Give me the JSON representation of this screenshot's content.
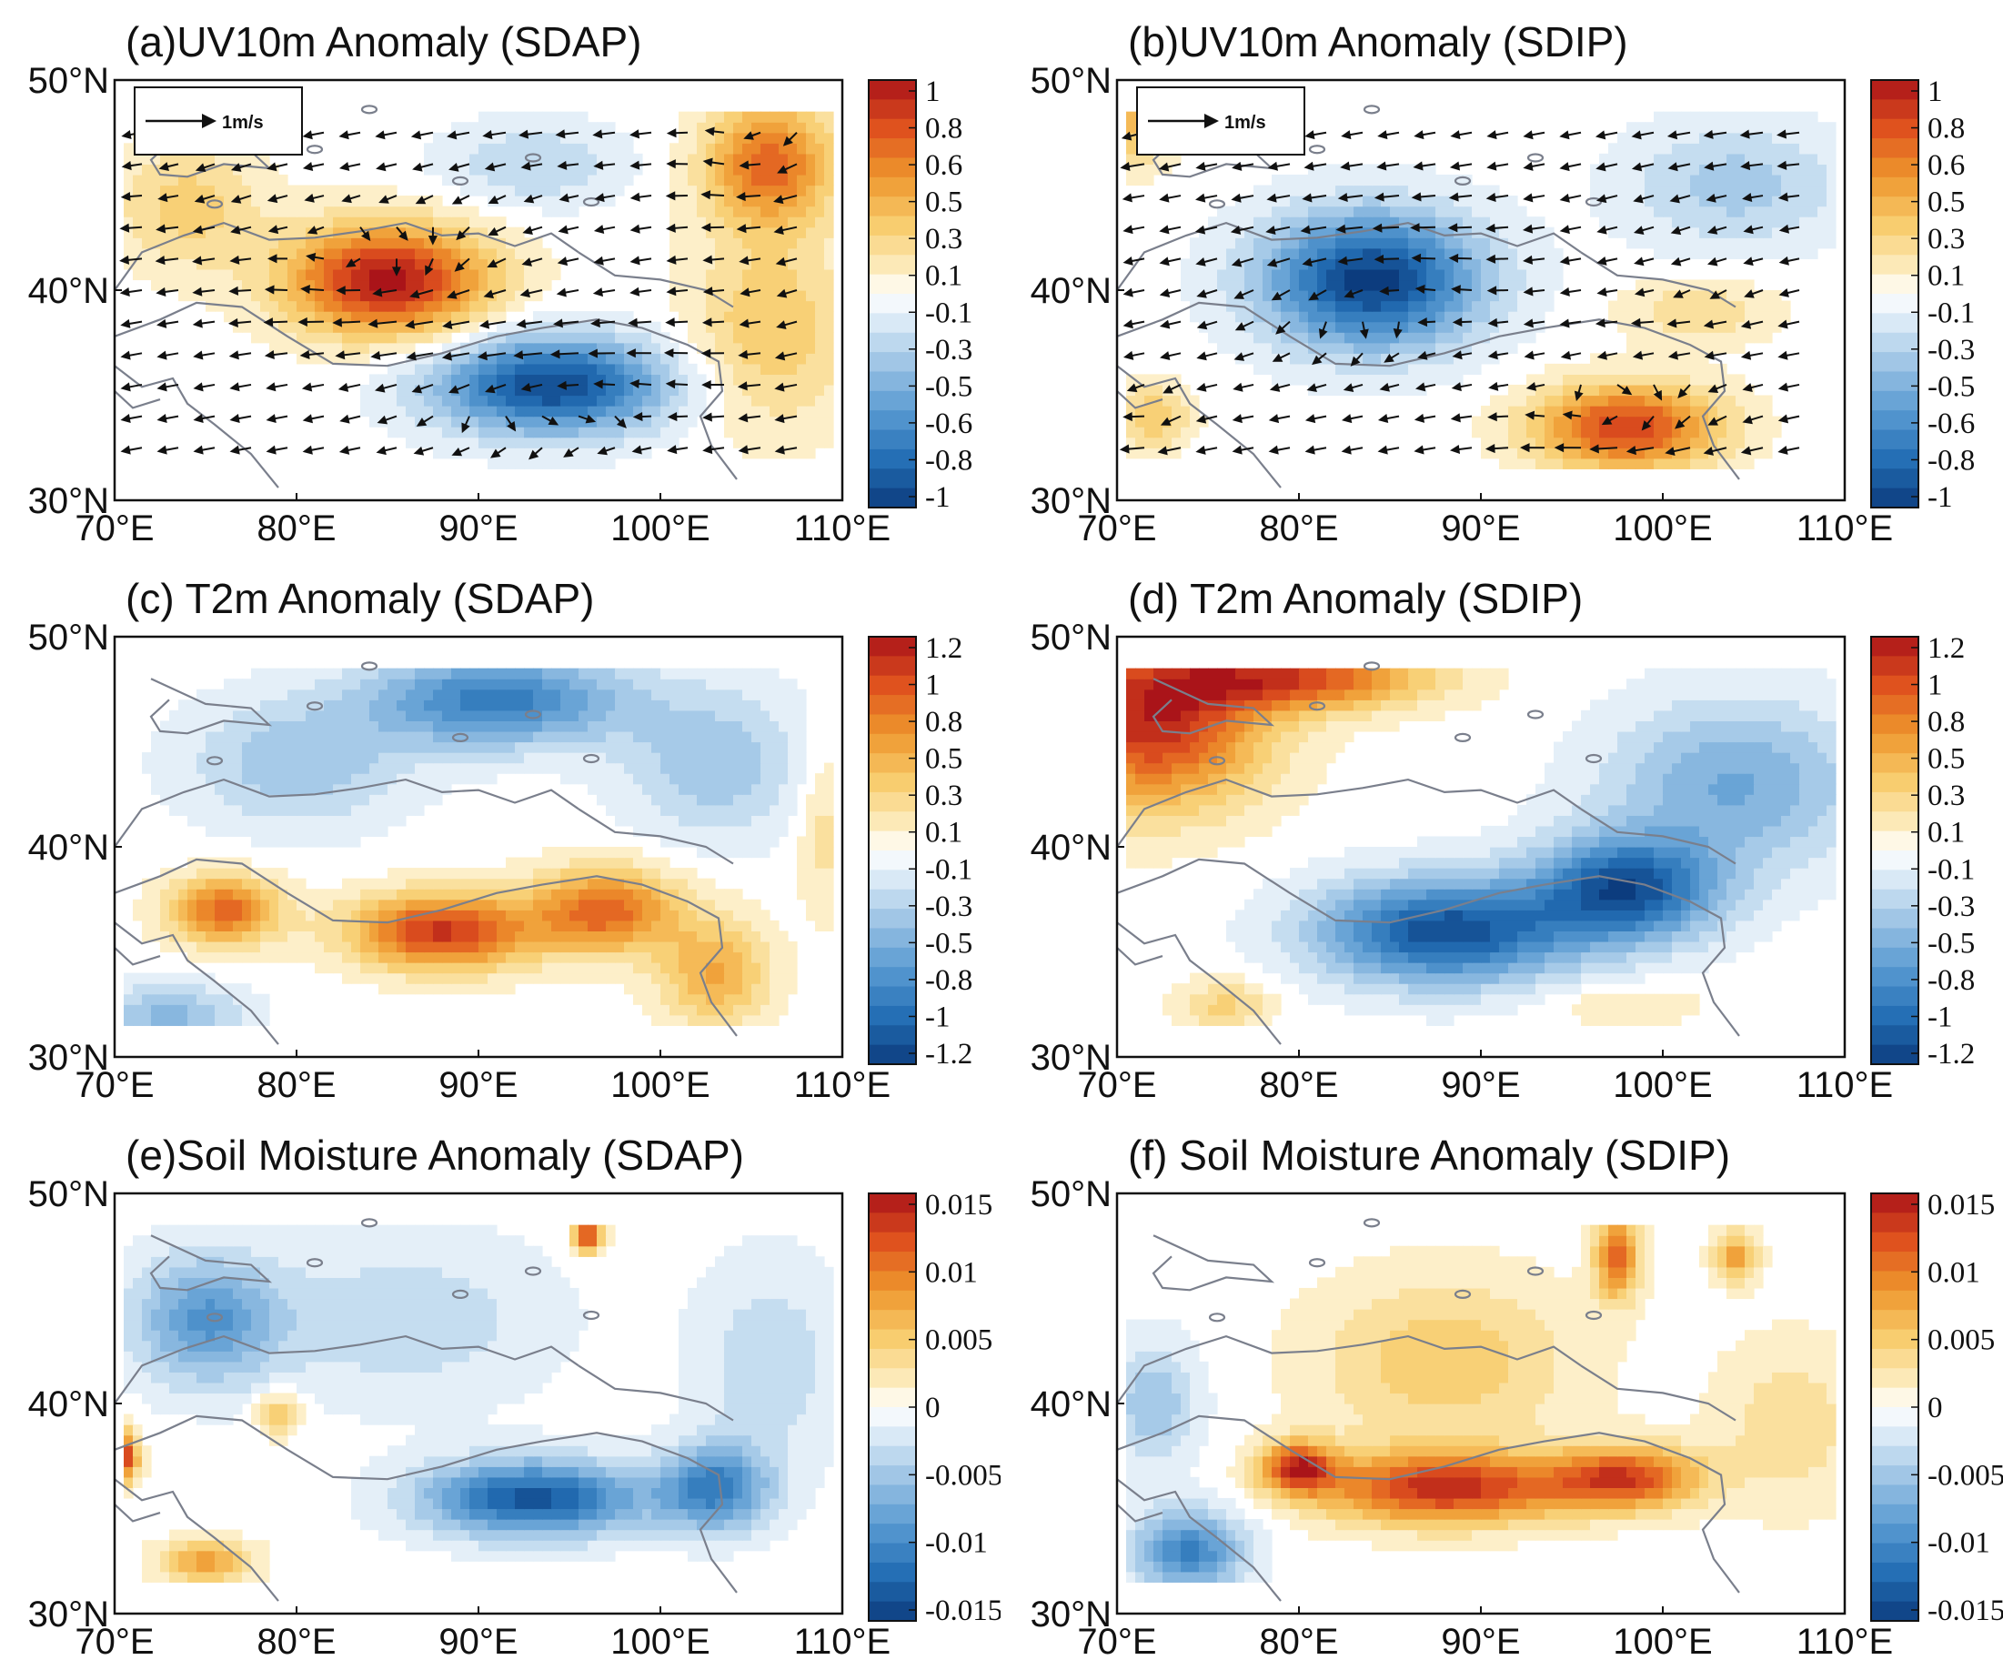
{
  "chart_data": [
    {
      "id": "a",
      "type": "heatmap",
      "title": "(a)UV10m Anomaly (SDAP)",
      "overlay": "wind-vectors",
      "reference_vector": "1m/s",
      "xlabel": "",
      "ylabel": "",
      "x_ticks": [
        "70°E",
        "80°E",
        "90°E",
        "100°E",
        "110°E"
      ],
      "y_ticks": [
        "50°N",
        "40°N",
        "30°N"
      ],
      "xlim": [
        70,
        110
      ],
      "ylim": [
        30,
        50
      ],
      "colorbar": {
        "min": -1,
        "max": 1,
        "labels": [
          "1",
          "0.8",
          "0.6",
          "0.5",
          "0.3",
          "0.1",
          "-0.1",
          "-0.3",
          "-0.5",
          "-0.6",
          "-0.8",
          "-1"
        ]
      },
      "features": [
        {
          "lon": 85,
          "lat": 40.5,
          "value": 1.0,
          "sx": 5.5,
          "sy": 2.6
        },
        {
          "lon": 94,
          "lat": 35.5,
          "value": -0.95,
          "sx": 6.5,
          "sy": 2.3
        },
        {
          "lon": 106,
          "lat": 46,
          "value": 0.7,
          "sx": 3.5,
          "sy": 3.0
        },
        {
          "lon": 106,
          "lat": 38,
          "value": 0.35,
          "sx": 4.5,
          "sy": 4.5
        },
        {
          "lon": 74,
          "lat": 44,
          "value": 0.3,
          "sx": 4.0,
          "sy": 3.0
        },
        {
          "lon": 93,
          "lat": 46,
          "value": -0.25,
          "sx": 5.0,
          "sy": 2.0
        }
      ]
    },
    {
      "id": "b",
      "type": "heatmap",
      "title": "(b)UV10m Anomaly (SDIP)",
      "overlay": "wind-vectors",
      "reference_vector": "1m/s",
      "xlabel": "",
      "ylabel": "",
      "x_ticks": [
        "70°E",
        "80°E",
        "90°E",
        "100°E",
        "110°E"
      ],
      "y_ticks": [
        "50°N",
        "40°N",
        "30°N"
      ],
      "xlim": [
        70,
        110
      ],
      "ylim": [
        30,
        50
      ],
      "colorbar": {
        "min": -1,
        "max": 1,
        "labels": [
          "1",
          "0.8",
          "0.6",
          "0.5",
          "0.3",
          "0.1",
          "-0.1",
          "-0.3",
          "-0.5",
          "-0.6",
          "-0.8",
          "-1"
        ]
      },
      "features": [
        {
          "lon": 84,
          "lat": 40.5,
          "value": -1.0,
          "sx": 6.0,
          "sy": 3.2
        },
        {
          "lon": 98,
          "lat": 33.5,
          "value": 0.85,
          "sx": 5.0,
          "sy": 2.0
        },
        {
          "lon": 104,
          "lat": 45,
          "value": -0.3,
          "sx": 6.0,
          "sy": 3.0
        },
        {
          "lon": 72,
          "lat": 34,
          "value": 0.35,
          "sx": 2.0,
          "sy": 1.5
        },
        {
          "lon": 71,
          "lat": 48,
          "value": 0.4,
          "sx": 2.0,
          "sy": 2.0
        },
        {
          "lon": 102,
          "lat": 39,
          "value": 0.25,
          "sx": 4.0,
          "sy": 1.5
        }
      ]
    },
    {
      "id": "c",
      "type": "heatmap",
      "title": "(c) T2m Anomaly (SDAP)",
      "xlabel": "",
      "ylabel": "",
      "x_ticks": [
        "70°E",
        "80°E",
        "90°E",
        "100°E",
        "110°E"
      ],
      "y_ticks": [
        "50°N",
        "40°N",
        "30°N"
      ],
      "xlim": [
        70,
        110
      ],
      "ylim": [
        30,
        50
      ],
      "colorbar": {
        "min": -1.2,
        "max": 1.2,
        "labels": [
          "1.2",
          "1",
          "0.8",
          "0.5",
          "0.3",
          "0.1",
          "-0.1",
          "-0.3",
          "-0.5",
          "-0.8",
          "-1",
          "-1.2"
        ]
      },
      "features": [
        {
          "lon": 88,
          "lat": 36,
          "value": 1.05,
          "sx": 5.0,
          "sy": 1.8
        },
        {
          "lon": 97,
          "lat": 37,
          "value": 0.85,
          "sx": 4.0,
          "sy": 2.0
        },
        {
          "lon": 76,
          "lat": 37,
          "value": 0.85,
          "sx": 3.0,
          "sy": 1.6
        },
        {
          "lon": 103,
          "lat": 34,
          "value": 0.55,
          "sx": 3.0,
          "sy": 2.5
        },
        {
          "lon": 91,
          "lat": 47,
          "value": -0.85,
          "sx": 7.0,
          "sy": 2.2
        },
        {
          "lon": 80,
          "lat": 44,
          "value": -0.4,
          "sx": 6.0,
          "sy": 3.0
        },
        {
          "lon": 103,
          "lat": 44,
          "value": -0.4,
          "sx": 5.0,
          "sy": 3.5
        },
        {
          "lon": 73,
          "lat": 32,
          "value": -0.45,
          "sx": 4.0,
          "sy": 1.5
        },
        {
          "lon": 109,
          "lat": 41,
          "value": 0.25,
          "sx": 1.5,
          "sy": 4.0
        }
      ]
    },
    {
      "id": "d",
      "type": "heatmap",
      "title": "(d) T2m Anomaly (SDIP)",
      "xlabel": "",
      "ylabel": "",
      "x_ticks": [
        "70°E",
        "80°E",
        "90°E",
        "100°E",
        "110°E"
      ],
      "y_ticks": [
        "50°N",
        "40°N",
        "30°N"
      ],
      "xlim": [
        70,
        110
      ],
      "ylim": [
        30,
        50
      ],
      "colorbar": {
        "min": -1.2,
        "max": 1.2,
        "labels": [
          "1.2",
          "1",
          "0.8",
          "0.5",
          "0.3",
          "0.1",
          "-0.1",
          "-0.3",
          "-0.5",
          "-0.8",
          "-1",
          "-1.2"
        ]
      },
      "features": [
        {
          "lon": 72,
          "lat": 46,
          "value": 1.1,
          "sx": 6.0,
          "sy": 4.0
        },
        {
          "lon": 80,
          "lat": 48,
          "value": 0.9,
          "sx": 7.0,
          "sy": 1.5
        },
        {
          "lon": 88,
          "lat": 36,
          "value": -1.1,
          "sx": 7.0,
          "sy": 2.5
        },
        {
          "lon": 98,
          "lat": 38,
          "value": -1.05,
          "sx": 5.0,
          "sy": 2.5
        },
        {
          "lon": 104,
          "lat": 43,
          "value": -0.55,
          "sx": 7.0,
          "sy": 4.0
        },
        {
          "lon": 76,
          "lat": 32.5,
          "value": 0.35,
          "sx": 2.5,
          "sy": 1.2
        },
        {
          "lon": 98,
          "lat": 32.5,
          "value": 0.2,
          "sx": 4.0,
          "sy": 1.0
        }
      ]
    },
    {
      "id": "e",
      "type": "heatmap",
      "title": "(e)Soil Moisture Anomaly (SDAP)",
      "xlabel": "",
      "ylabel": "",
      "x_ticks": [
        "70°E",
        "80°E",
        "90°E",
        "100°E",
        "110°E"
      ],
      "y_ticks": [
        "50°N",
        "40°N",
        "30°N"
      ],
      "xlim": [
        70,
        110
      ],
      "ylim": [
        30,
        50
      ],
      "colorbar": {
        "min": -0.018,
        "max": 0.018,
        "labels": [
          "0.015",
          "0.01",
          "0.005",
          "0",
          "-0.005",
          "-0.01",
          "-0.015"
        ]
      },
      "features": [
        {
          "lon": 93,
          "lat": 35.5,
          "value": -0.016,
          "sx": 6.0,
          "sy": 1.8
        },
        {
          "lon": 103,
          "lat": 36,
          "value": -0.012,
          "sx": 3.0,
          "sy": 2.0
        },
        {
          "lon": 75,
          "lat": 44,
          "value": -0.01,
          "sx": 4.0,
          "sy": 3.0
        },
        {
          "lon": 96,
          "lat": 48,
          "value": 0.016,
          "sx": 0.8,
          "sy": 0.8
        },
        {
          "lon": 70.5,
          "lat": 37.5,
          "value": 0.016,
          "sx": 0.8,
          "sy": 1.2
        },
        {
          "lon": 79,
          "lat": 39.5,
          "value": 0.007,
          "sx": 1.2,
          "sy": 1.0
        },
        {
          "lon": 75,
          "lat": 32.5,
          "value": 0.009,
          "sx": 2.5,
          "sy": 1.0
        },
        {
          "lon": 86,
          "lat": 44,
          "value": -0.004,
          "sx": 8.0,
          "sy": 4.0
        },
        {
          "lon": 106,
          "lat": 42,
          "value": -0.004,
          "sx": 4.0,
          "sy": 5.0
        }
      ]
    },
    {
      "id": "f",
      "type": "heatmap",
      "title": "(f) Soil Moisture Anomaly (SDIP)",
      "xlabel": "",
      "ylabel": "",
      "x_ticks": [
        "70°E",
        "80°E",
        "90°E",
        "100°E",
        "110°E"
      ],
      "y_ticks": [
        "50°N",
        "40°N",
        "30°N"
      ],
      "xlim": [
        70,
        110
      ],
      "ylim": [
        30,
        50
      ],
      "colorbar": {
        "min": -0.018,
        "max": 0.018,
        "labels": [
          "0.015",
          "0.01",
          "0.005",
          "0",
          "-0.005",
          "-0.01",
          "-0.015"
        ]
      },
      "features": [
        {
          "lon": 88,
          "lat": 36,
          "value": 0.016,
          "sx": 7.0,
          "sy": 1.7
        },
        {
          "lon": 98,
          "lat": 36.5,
          "value": 0.014,
          "sx": 4.0,
          "sy": 1.5
        },
        {
          "lon": 80,
          "lat": 37,
          "value": 0.015,
          "sx": 2.0,
          "sy": 1.2
        },
        {
          "lon": 97.5,
          "lat": 47,
          "value": 0.013,
          "sx": 1.2,
          "sy": 2.0
        },
        {
          "lon": 104,
          "lat": 47,
          "value": 0.009,
          "sx": 1.2,
          "sy": 1.2
        },
        {
          "lon": 88,
          "lat": 42,
          "value": 0.006,
          "sx": 7.0,
          "sy": 4.0
        },
        {
          "lon": 74,
          "lat": 33,
          "value": -0.012,
          "sx": 3.0,
          "sy": 2.0
        },
        {
          "lon": 72,
          "lat": 40,
          "value": -0.006,
          "sx": 2.5,
          "sy": 3.0
        },
        {
          "lon": 107,
          "lat": 39,
          "value": 0.004,
          "sx": 4.0,
          "sy": 4.0
        }
      ]
    }
  ]
}
